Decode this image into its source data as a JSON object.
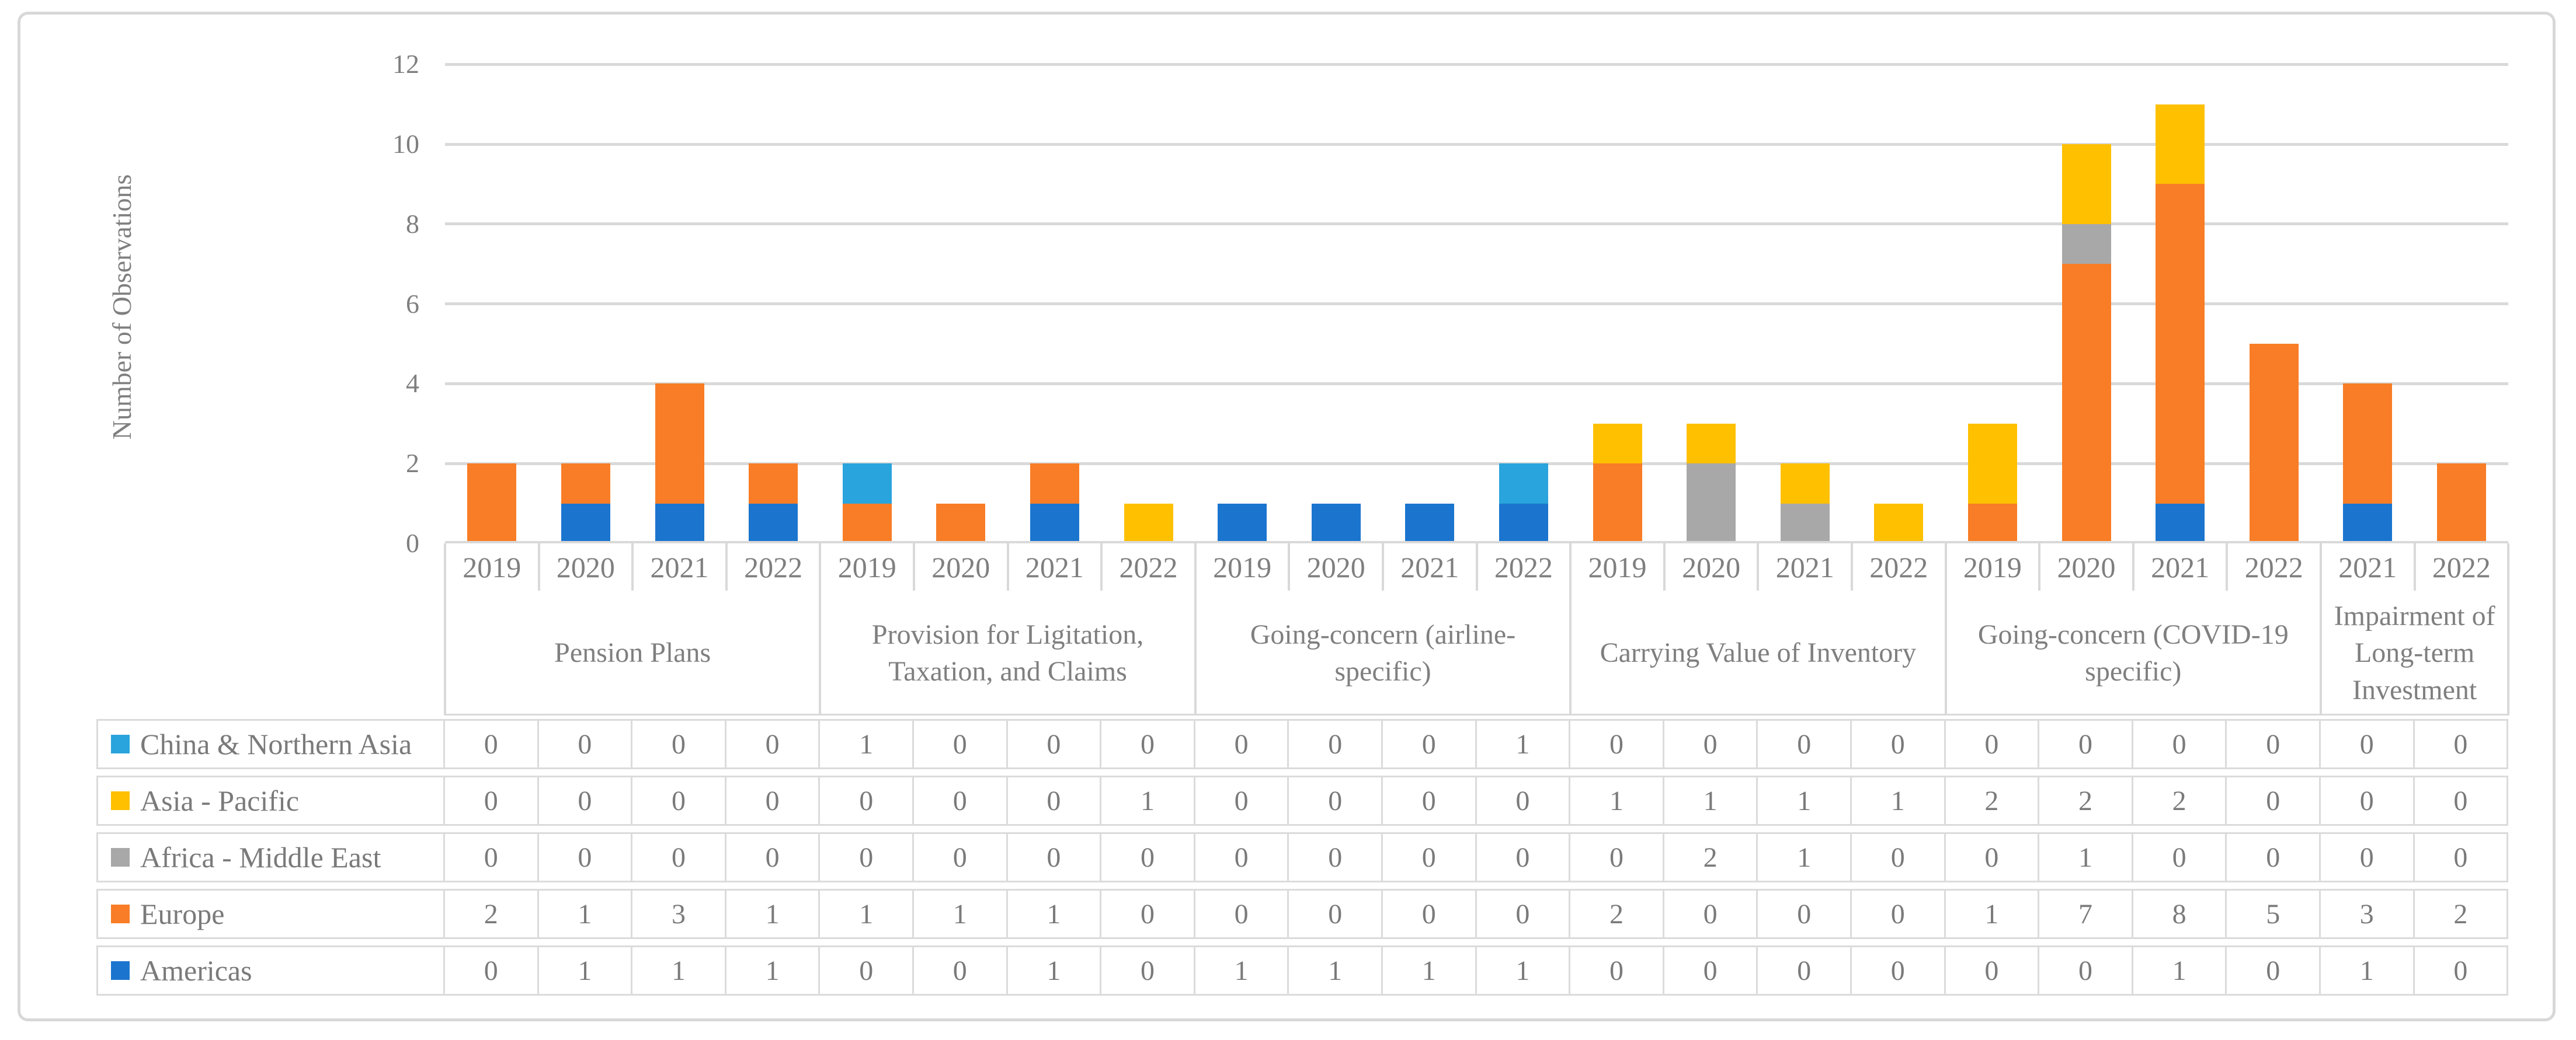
{
  "y_axis": {
    "title": "Number of Observations",
    "ticks": [
      "0",
      "2",
      "4",
      "6",
      "8",
      "10",
      "12"
    ]
  },
  "chart_data": {
    "type": "bar",
    "stacked": true,
    "title": "",
    "xlabel": "",
    "ylabel": "Number of Observations",
    "ylim": [
      0,
      12
    ],
    "grid": true,
    "legend_position": "table-left",
    "groups": [
      {
        "label": "Pension Plans",
        "years": [
          "2019",
          "2020",
          "2021",
          "2022"
        ]
      },
      {
        "label": "Provision for Ligitation, Taxation, and Claims",
        "years": [
          "2019",
          "2020",
          "2021",
          "2022"
        ]
      },
      {
        "label": "Going-concern (airline-specific)",
        "years": [
          "2019",
          "2020",
          "2021",
          "2022"
        ]
      },
      {
        "label": "Carrying Value of Inventory",
        "years": [
          "2019",
          "2020",
          "2021",
          "2022"
        ]
      },
      {
        "label": "Going-concern (COVID-19 specific)",
        "years": [
          "2019",
          "2020",
          "2021",
          "2022"
        ]
      },
      {
        "label": "Impairment of Long-term Investment",
        "years": [
          "2021",
          "2022"
        ]
      }
    ],
    "series": [
      {
        "name": "China & Northern Asia",
        "color": "#29A4DC",
        "values": [
          0,
          0,
          0,
          0,
          1,
          0,
          0,
          0,
          0,
          0,
          0,
          1,
          0,
          0,
          0,
          0,
          0,
          0,
          0,
          0,
          0,
          0
        ]
      },
      {
        "name": "Asia - Pacific",
        "color": "#FFC000",
        "values": [
          0,
          0,
          0,
          0,
          0,
          0,
          0,
          1,
          0,
          0,
          0,
          0,
          1,
          1,
          1,
          1,
          2,
          2,
          2,
          0,
          0,
          0
        ]
      },
      {
        "name": "Africa - Middle East",
        "color": "#A8A8A8",
        "values": [
          0,
          0,
          0,
          0,
          0,
          0,
          0,
          0,
          0,
          0,
          0,
          0,
          0,
          2,
          1,
          0,
          0,
          1,
          0,
          0,
          0,
          0
        ]
      },
      {
        "name": "Europe",
        "color": "#F87D26",
        "values": [
          2,
          1,
          3,
          1,
          1,
          1,
          1,
          0,
          0,
          0,
          0,
          0,
          2,
          0,
          0,
          0,
          1,
          7,
          8,
          5,
          3,
          2
        ]
      },
      {
        "name": "Americas",
        "color": "#1B75CE",
        "values": [
          0,
          1,
          1,
          1,
          0,
          0,
          1,
          0,
          1,
          1,
          1,
          1,
          0,
          0,
          0,
          0,
          0,
          0,
          1,
          0,
          1,
          0
        ]
      }
    ],
    "stack_order_bottom_to_top": [
      "Americas",
      "Europe",
      "Africa - Middle East",
      "Asia - Pacific",
      "China & Northern Asia"
    ]
  }
}
